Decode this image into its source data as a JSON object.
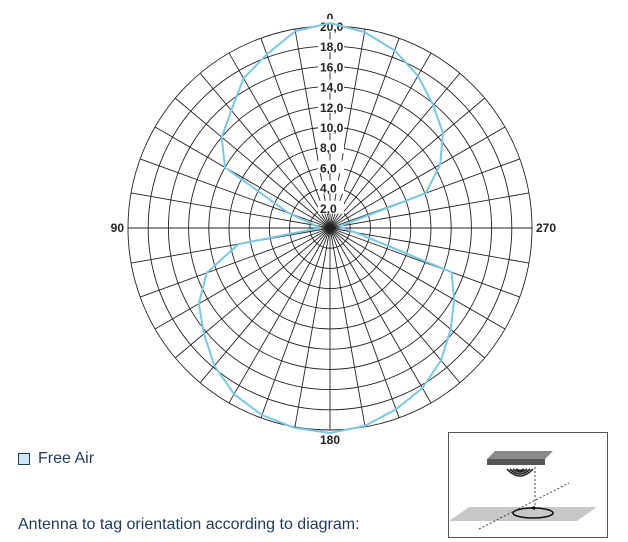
{
  "chart_data": {
    "type": "polar-line",
    "angle_labels": [
      "0",
      "90",
      "180",
      "270"
    ],
    "radial_ticks": [
      "2,0",
      "4,0",
      "6,0",
      "8,0",
      "10,0",
      "12,0",
      "14,0",
      "16,0",
      "18,0",
      "20,0"
    ],
    "rlim": [
      0,
      20
    ],
    "angle_direction": "counterclockwise",
    "series": [
      {
        "name": "Free Air",
        "color": "#7cc7e3",
        "theta": [
          0,
          10,
          20,
          30,
          40,
          50,
          60,
          70,
          80,
          90,
          100,
          110,
          120,
          130,
          140,
          150,
          160,
          170,
          180,
          190,
          200,
          210,
          220,
          230,
          240,
          250,
          260,
          270,
          280,
          290,
          300,
          310,
          320,
          330,
          340,
          350,
          360
        ],
        "r": [
          20.3,
          19.8,
          18.3,
          17.1,
          15.2,
          14.0,
          12.0,
          4.4,
          1.5,
          1.0,
          9.2,
          13.0,
          15.0,
          16.3,
          17.8,
          19.0,
          19.7,
          20.1,
          20.3,
          19.9,
          19.1,
          18.3,
          17.1,
          15.6,
          14.2,
          12.8,
          2.6,
          1.2,
          1.0,
          10.1,
          12.6,
          14.6,
          15.9,
          17.4,
          18.7,
          19.7,
          20.3
        ]
      }
    ]
  },
  "legend": {
    "label": "Free Air"
  },
  "caption": "Antenna to tag orientation according to diagram:",
  "colors": {
    "series": "#7cc7e3",
    "text": "#1f3a5a"
  }
}
